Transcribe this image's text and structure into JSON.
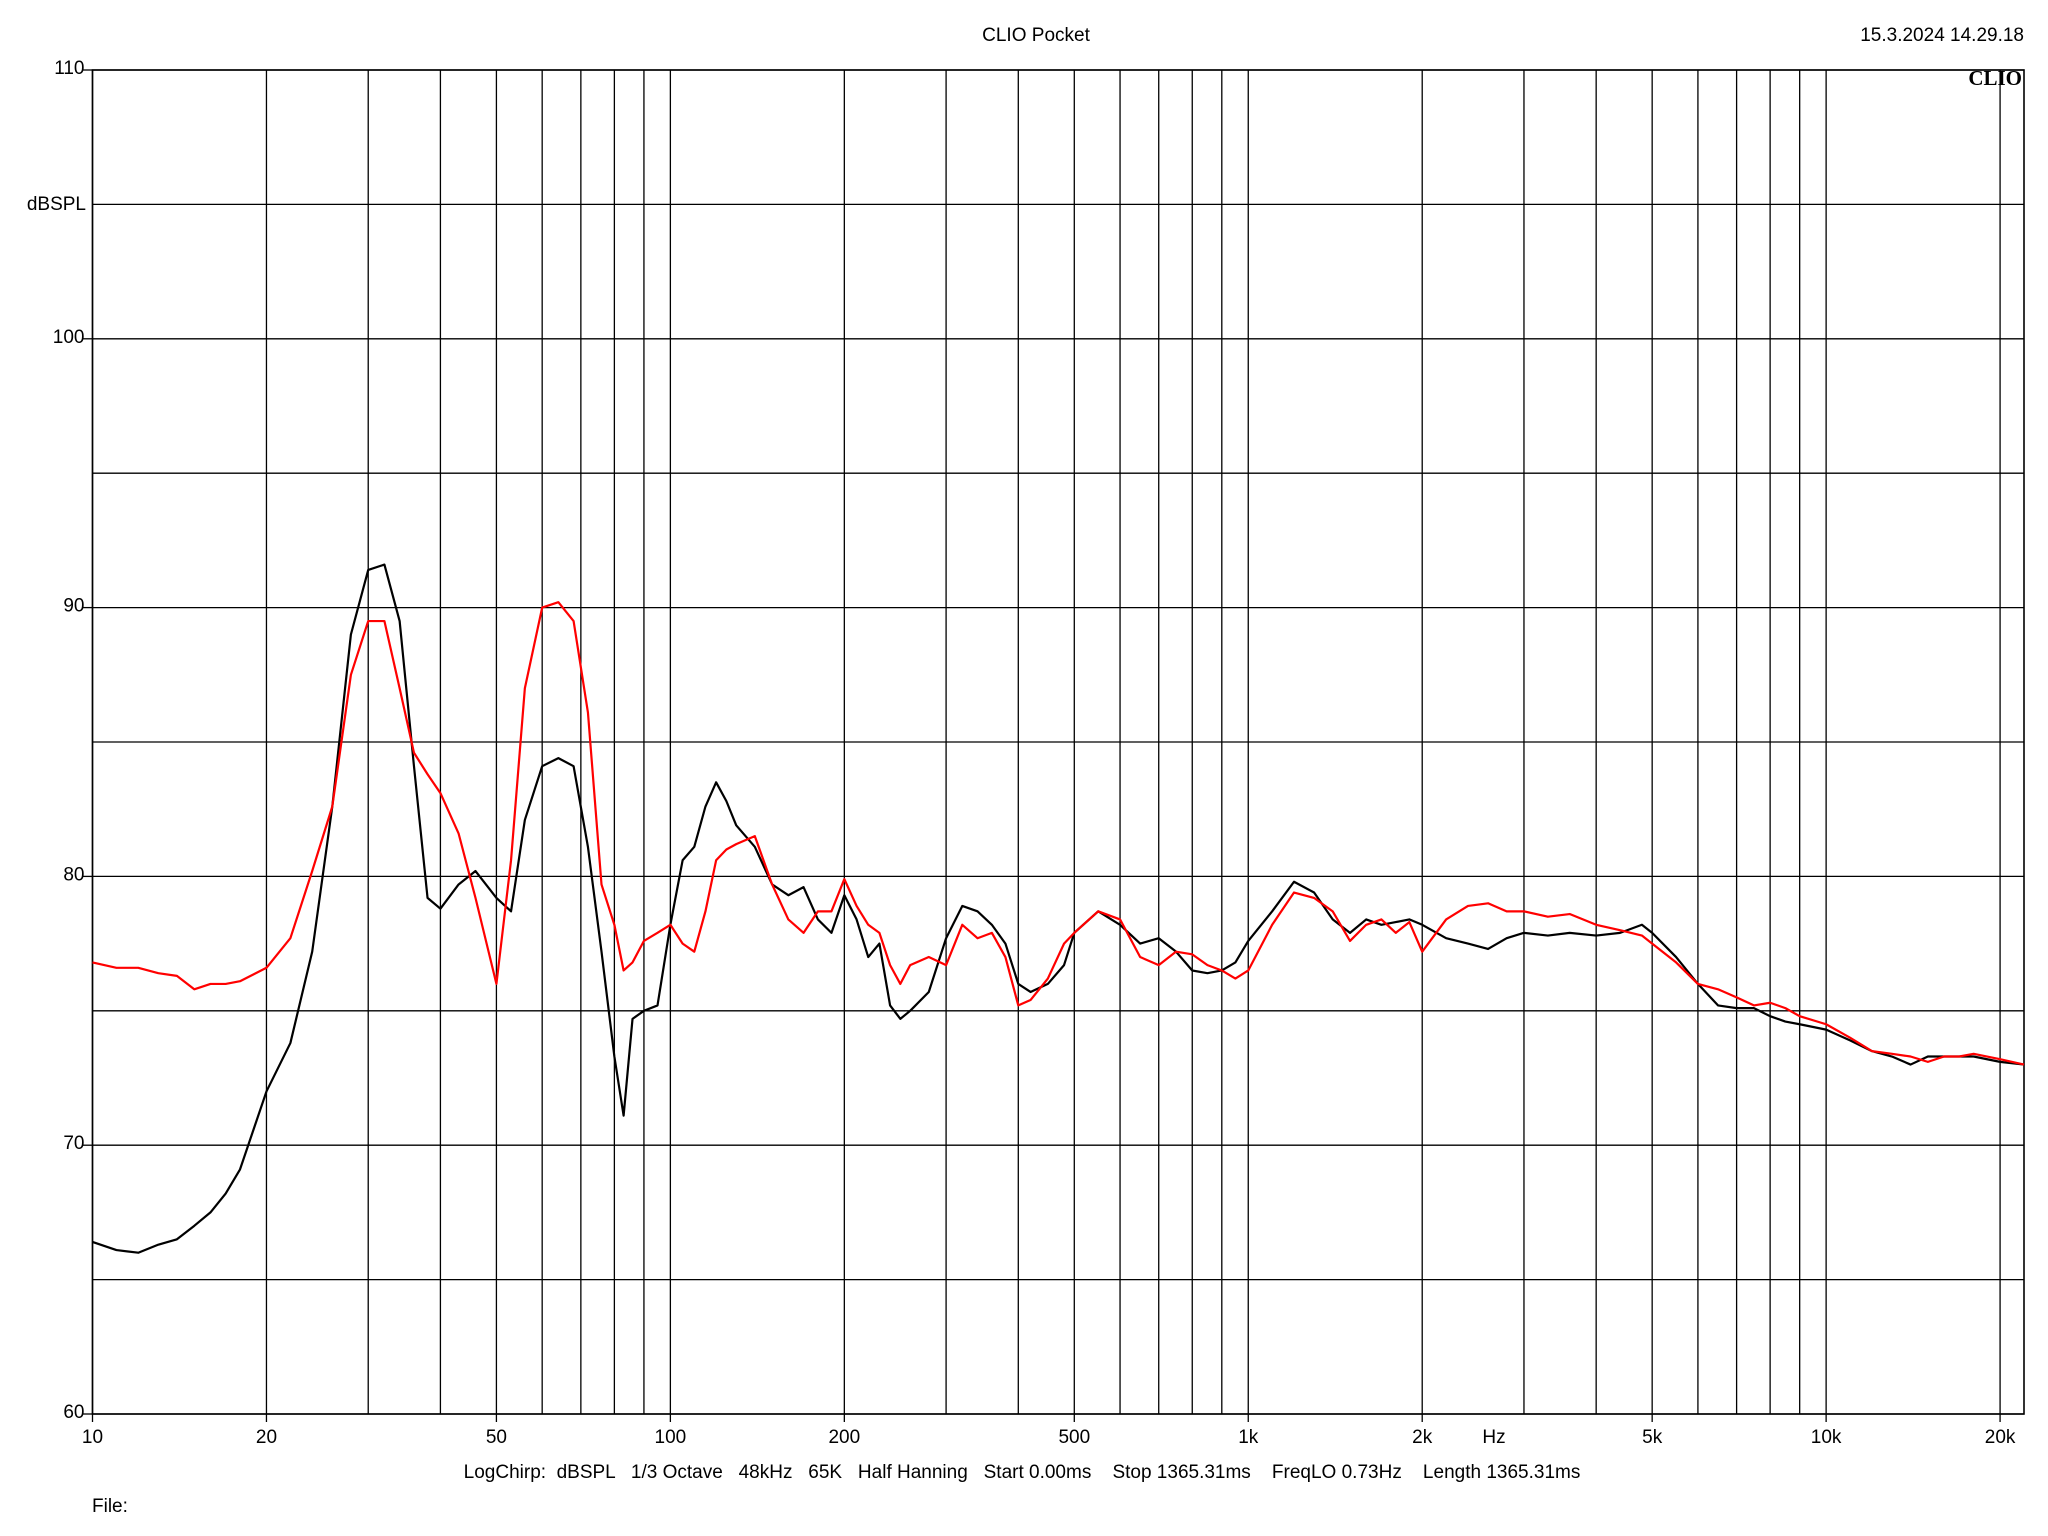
{
  "chart_data": {
    "type": "line",
    "title": "CLIO Pocket",
    "timestamp": "15.3.2024 14.29.18",
    "logo": "CLIO",
    "ylabel": "dBSPL",
    "xlabel": "Hz",
    "footer": "LogChirp:  dBSPL   1/3 Octave   48kHz   65K   Half Hanning   Start 0.00ms    Stop 1365.31ms    FreqLO 0.73Hz    Length 1365.31ms",
    "file_label": "File:",
    "xlog": true,
    "grid": true,
    "xlim": [
      10,
      22000
    ],
    "ylim": [
      60,
      110
    ],
    "xticks": [
      10,
      20,
      50,
      100,
      200,
      500,
      {
        "value": 1000,
        "label": "1k"
      },
      {
        "value": 2000,
        "label": "2k"
      },
      {
        "value": 5000,
        "label": "5k"
      },
      {
        "value": 10000,
        "label": "10k"
      },
      {
        "value": 20000,
        "label": "20k"
      }
    ],
    "yticks": [
      60,
      70,
      80,
      90,
      100,
      110
    ],
    "xgrid": [
      10,
      20,
      30,
      40,
      50,
      60,
      70,
      80,
      90,
      100,
      200,
      300,
      400,
      500,
      600,
      700,
      800,
      900,
      1000,
      2000,
      3000,
      4000,
      5000,
      6000,
      7000,
      8000,
      9000,
      10000,
      20000
    ],
    "ygrid": [
      60,
      65,
      70,
      75,
      80,
      85,
      90,
      95,
      100,
      105,
      110
    ],
    "x": [
      10,
      11,
      12,
      13,
      14,
      15,
      16,
      17,
      18,
      20,
      22,
      24,
      26,
      28,
      30,
      32,
      34,
      36,
      38,
      40,
      43,
      46,
      50,
      53,
      56,
      60,
      64,
      68,
      72,
      76,
      80,
      83,
      86,
      90,
      95,
      100,
      105,
      110,
      115,
      120,
      125,
      130,
      140,
      150,
      160,
      170,
      180,
      190,
      200,
      210,
      220,
      230,
      240,
      250,
      260,
      280,
      300,
      320,
      340,
      360,
      380,
      400,
      420,
      450,
      480,
      500,
      550,
      600,
      650,
      700,
      750,
      800,
      850,
      900,
      950,
      1000,
      1100,
      1200,
      1300,
      1400,
      1500,
      1600,
      1700,
      1800,
      1900,
      2000,
      2200,
      2400,
      2600,
      2800,
      3000,
      3300,
      3600,
      4000,
      4400,
      4800,
      5000,
      5500,
      6000,
      6500,
      7000,
      7500,
      8000,
      8500,
      9000,
      10000,
      11000,
      12000,
      13000,
      14000,
      15000,
      16000,
      17000,
      18000,
      20000,
      22000
    ],
    "series": [
      {
        "color": "#000000",
        "values": [
          66.4,
          66.1,
          66.0,
          66.3,
          66.5,
          67.0,
          67.5,
          68.2,
          69.1,
          72.0,
          73.8,
          77.2,
          82.6,
          89.0,
          91.4,
          91.6,
          89.5,
          84.1,
          79.2,
          78.8,
          79.7,
          80.2,
          79.2,
          78.7,
          82.1,
          84.1,
          84.4,
          84.1,
          81.1,
          77.2,
          73.3,
          71.1,
          74.7,
          75.0,
          75.2,
          78.2,
          80.6,
          81.1,
          82.6,
          83.5,
          82.8,
          81.9,
          81.1,
          79.7,
          79.3,
          79.6,
          78.4,
          77.9,
          79.3,
          78.4,
          77.0,
          77.5,
          75.2,
          74.7,
          75.0,
          75.7,
          77.7,
          78.9,
          78.7,
          78.2,
          77.5,
          76.0,
          75.7,
          76.0,
          76.7,
          77.9,
          78.7,
          78.2,
          77.5,
          77.7,
          77.2,
          76.5,
          76.4,
          76.5,
          76.8,
          77.6,
          78.7,
          79.8,
          79.4,
          78.4,
          77.9,
          78.4,
          78.2,
          78.3,
          78.4,
          78.2,
          77.7,
          77.5,
          77.3,
          77.7,
          77.9,
          77.8,
          77.9,
          77.8,
          77.9,
          78.2,
          77.9,
          77.0,
          76.0,
          75.2,
          75.1,
          75.1,
          74.8,
          74.6,
          74.5,
          74.3,
          73.9,
          73.5,
          73.3,
          73.0,
          73.3,
          73.3,
          73.3,
          73.3,
          73.1,
          73.0
        ]
      },
      {
        "color": "#ff0000",
        "values": [
          76.8,
          76.6,
          76.6,
          76.4,
          76.3,
          75.8,
          76.0,
          76.0,
          76.1,
          76.6,
          77.7,
          80.2,
          82.6,
          87.5,
          89.5,
          89.5,
          87.0,
          84.6,
          83.8,
          83.1,
          81.6,
          79.2,
          76.0,
          80.6,
          87.0,
          90.0,
          90.2,
          89.5,
          86.1,
          79.7,
          78.2,
          76.5,
          76.8,
          77.6,
          77.9,
          78.2,
          77.5,
          77.2,
          78.7,
          80.6,
          81.0,
          81.2,
          81.5,
          79.7,
          78.4,
          77.9,
          78.7,
          78.7,
          79.9,
          78.9,
          78.2,
          77.9,
          76.7,
          76.0,
          76.7,
          77.0,
          76.7,
          78.2,
          77.7,
          77.9,
          77.0,
          75.2,
          75.4,
          76.2,
          77.5,
          77.9,
          78.7,
          78.4,
          77.0,
          76.7,
          77.2,
          77.1,
          76.7,
          76.5,
          76.2,
          76.5,
          78.2,
          79.4,
          79.2,
          78.7,
          77.6,
          78.2,
          78.4,
          77.9,
          78.3,
          77.2,
          78.4,
          78.9,
          79.0,
          78.7,
          78.7,
          78.5,
          78.6,
          78.2,
          78.0,
          77.8,
          77.5,
          76.8,
          76.0,
          75.8,
          75.5,
          75.2,
          75.3,
          75.1,
          74.8,
          74.5,
          74.0,
          73.5,
          73.4,
          73.3,
          73.1,
          73.3,
          73.3,
          73.4,
          73.2,
          73.0
        ]
      }
    ]
  }
}
